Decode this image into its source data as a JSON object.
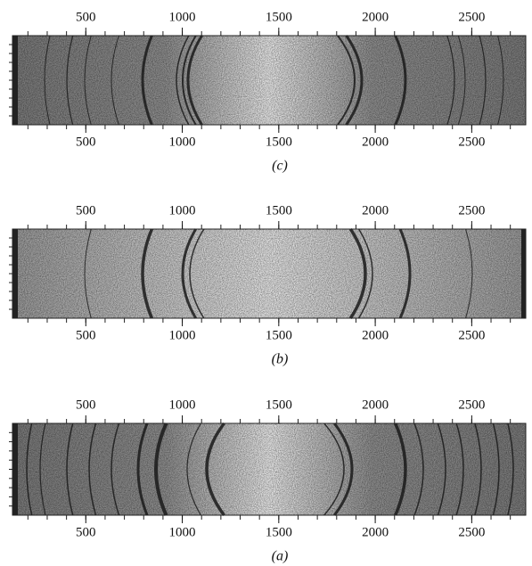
{
  "chart_data": [
    {
      "type": "image",
      "xlim": [
        120,
        2780
      ],
      "xticks": [
        500,
        1000,
        1500,
        2000,
        2500
      ],
      "caption": "(c)"
    },
    {
      "type": "image",
      "xlim": [
        120,
        2780
      ],
      "xticks": [
        500,
        1000,
        1500,
        2000,
        2500
      ],
      "caption": "(b)"
    },
    {
      "type": "image",
      "xlim": [
        120,
        2780
      ],
      "xticks": [
        500,
        1000,
        1500,
        2000,
        2500
      ],
      "caption": "(a)"
    }
  ]
}
